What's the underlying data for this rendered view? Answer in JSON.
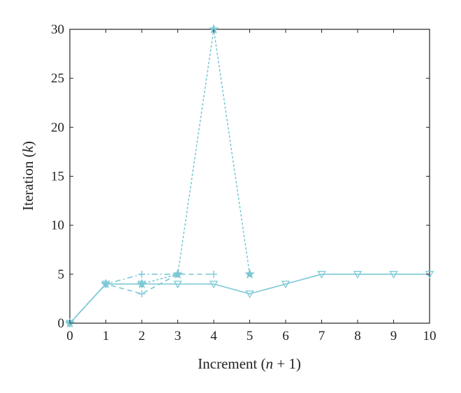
{
  "chart_data": {
    "type": "line",
    "xlabel_parts": [
      "Increment (",
      "n",
      " + 1)"
    ],
    "ylabel_parts": [
      "Iteration (",
      "k",
      ")"
    ],
    "xlim": [
      0,
      10
    ],
    "ylim": [
      0,
      30
    ],
    "xticks": [
      0,
      1,
      2,
      3,
      4,
      5,
      6,
      7,
      8,
      9,
      10
    ],
    "yticks": [
      0,
      5,
      10,
      15,
      20,
      25,
      30
    ],
    "grid": false,
    "color": "#7cc8d6",
    "series": [
      {
        "dash": "solid",
        "marker": "triangle-down",
        "x": [
          0,
          1,
          2,
          3,
          4,
          5,
          6,
          7,
          8,
          9,
          10
        ],
        "y": [
          0,
          4,
          4,
          4,
          4,
          3,
          4,
          5,
          5,
          5,
          5
        ]
      },
      {
        "dash": "dashed",
        "marker": "plus",
        "x": [
          0,
          1,
          2,
          3,
          4
        ],
        "y": [
          0,
          4,
          3,
          5,
          5
        ]
      },
      {
        "dash": "dashdot",
        "marker": "plus",
        "x": [
          0,
          1,
          2,
          3
        ],
        "y": [
          0,
          4,
          5,
          5
        ]
      },
      {
        "dash": "dotted",
        "marker": "star",
        "x": [
          0,
          1,
          2,
          3,
          4,
          5
        ],
        "y": [
          0,
          4,
          4,
          5,
          30,
          5
        ]
      }
    ]
  }
}
